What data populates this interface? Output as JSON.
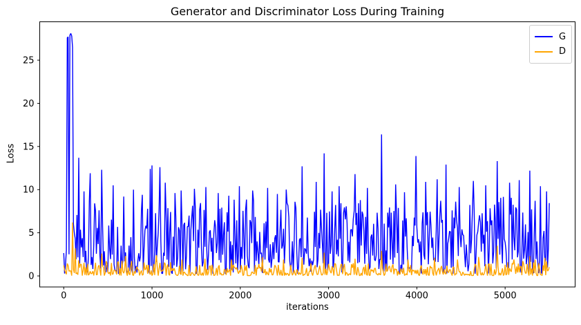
{
  "chart_data": {
    "type": "line",
    "title": "Generator and Discriminator Loss During Training",
    "xlabel": "iterations",
    "ylabel": "Loss",
    "xlim": [
      -272,
      5793
    ],
    "ylim": [
      -1.28,
      29.45
    ],
    "xticks": [
      0,
      1000,
      2000,
      3000,
      4000,
      5000
    ],
    "yticks": [
      0,
      5,
      10,
      15,
      20,
      25
    ],
    "x_range": [
      0,
      5500
    ],
    "sample_step": 10,
    "grid": false,
    "legend": {
      "position": "upper right",
      "entries": [
        {
          "label": "G",
          "color": "#0000ff"
        },
        {
          "label": "D",
          "color": "#ffa500"
        }
      ]
    },
    "axis_color": "#000000",
    "series": [
      {
        "name": "G",
        "color": "#0000ff",
        "band_low": 0.25,
        "noise_pow": 1.7,
        "envelope": {
          "x": [
            0,
            100,
            150,
            250,
            400,
            600,
            800,
            1000,
            1250,
            1500,
            1750,
            2000,
            2250,
            2500,
            2750,
            3000,
            3250,
            3500,
            3750,
            4000,
            4250,
            4500,
            4750,
            5000,
            5250,
            5500
          ],
          "max": [
            3.0,
            3.0,
            8.0,
            9.0,
            8.5,
            8.0,
            8.2,
            9.0,
            7.5,
            9.5,
            8.0,
            9.7,
            8.2,
            8.5,
            9.5,
            9.0,
            9.2,
            9.0,
            8.7,
            9.5,
            9.0,
            8.7,
            9.2,
            9.5,
            9.2,
            8.5
          ]
        },
        "spikes": [
          [
            30,
            3.0
          ],
          [
            40,
            27.6
          ],
          [
            50,
            27.7
          ],
          [
            60,
            2.5
          ],
          [
            70,
            27.9
          ],
          [
            80,
            28.1
          ],
          [
            90,
            27.8
          ],
          [
            100,
            26.5
          ],
          [
            110,
            6.0
          ],
          [
            170,
            13.7
          ],
          [
            230,
            9.8
          ],
          [
            300,
            11.9
          ],
          [
            430,
            12.3
          ],
          [
            560,
            10.5
          ],
          [
            680,
            9.2
          ],
          [
            790,
            10.0
          ],
          [
            890,
            9.4
          ],
          [
            980,
            12.4
          ],
          [
            1000,
            12.8
          ],
          [
            1090,
            12.6
          ],
          [
            1150,
            10.8
          ],
          [
            1260,
            9.6
          ],
          [
            1330,
            9.9
          ],
          [
            1480,
            10.1
          ],
          [
            1610,
            10.3
          ],
          [
            1750,
            9.6
          ],
          [
            1870,
            9.3
          ],
          [
            1990,
            10.4
          ],
          [
            2140,
            9.9
          ],
          [
            2310,
            10.2
          ],
          [
            2420,
            9.5
          ],
          [
            2520,
            10.0
          ],
          [
            2700,
            12.7
          ],
          [
            2860,
            10.9
          ],
          [
            2950,
            14.2
          ],
          [
            3040,
            9.8
          ],
          [
            3120,
            10.4
          ],
          [
            3300,
            11.8
          ],
          [
            3440,
            10.2
          ],
          [
            3600,
            16.4
          ],
          [
            3760,
            10.6
          ],
          [
            3860,
            9.7
          ],
          [
            3990,
            13.9
          ],
          [
            4100,
            10.9
          ],
          [
            4230,
            11.2
          ],
          [
            4330,
            12.9
          ],
          [
            4480,
            10.3
          ],
          [
            4640,
            11.0
          ],
          [
            4780,
            10.5
          ],
          [
            4910,
            13.3
          ],
          [
            5050,
            10.8
          ],
          [
            5160,
            11.1
          ],
          [
            5280,
            12.2
          ],
          [
            5400,
            10.4
          ],
          [
            5470,
            9.8
          ]
        ]
      },
      {
        "name": "D",
        "color": "#ffa500",
        "band_low": 0.03,
        "noise_pow": 2.0,
        "envelope": {
          "x": [
            0,
            300,
            500,
            1000,
            1500,
            2000,
            2500,
            3000,
            3500,
            4000,
            4500,
            5000,
            5500
          ],
          "max": [
            2.2,
            1.6,
            1.8,
            1.8,
            1.3,
            1.5,
            1.3,
            1.6,
            1.5,
            1.3,
            1.2,
            1.8,
            1.9
          ]
        },
        "spikes": [
          [
            100,
            6.2
          ],
          [
            130,
            3.2
          ],
          [
            430,
            2.6
          ],
          [
            700,
            2.3
          ],
          [
            1050,
            2.4
          ],
          [
            1340,
            1.9
          ],
          [
            1600,
            2.0
          ],
          [
            1900,
            1.9
          ],
          [
            2250,
            2.2
          ],
          [
            2490,
            1.9
          ],
          [
            2700,
            2.1
          ],
          [
            2950,
            2.7
          ],
          [
            3300,
            2.0
          ],
          [
            3600,
            2.9
          ],
          [
            3900,
            1.9
          ],
          [
            4200,
            2.1
          ],
          [
            4460,
            1.9
          ],
          [
            4700,
            2.2
          ],
          [
            4910,
            3.5
          ],
          [
            5100,
            1.9
          ],
          [
            5280,
            2.3
          ],
          [
            5450,
            2.1
          ]
        ]
      }
    ]
  }
}
